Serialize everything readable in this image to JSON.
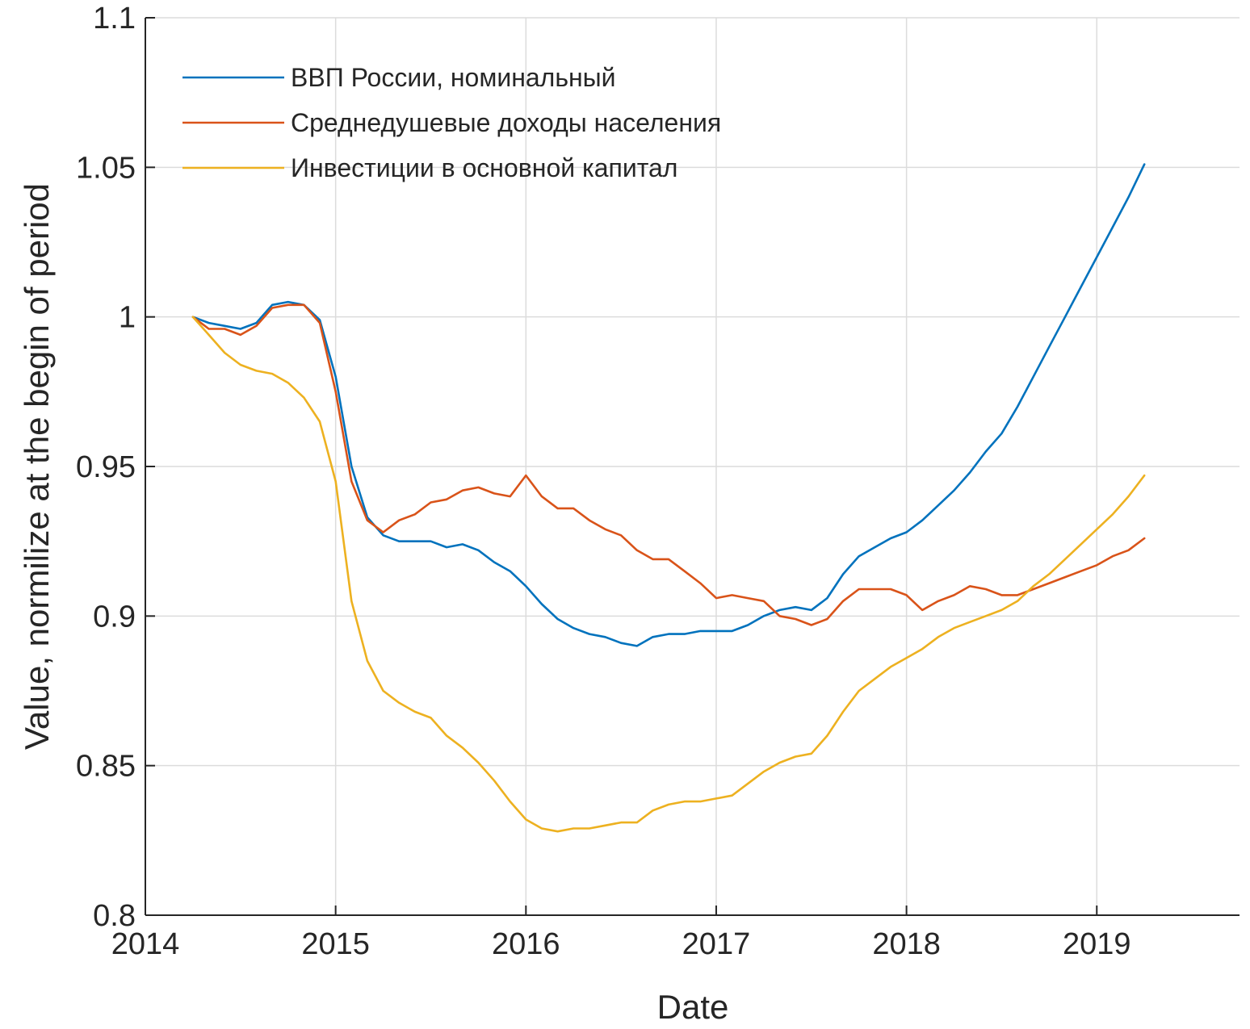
{
  "chart_data": {
    "type": "line",
    "xlabel": "Date",
    "ylabel": "Value, normilize at the begin of period",
    "x_ticks": [
      "2014",
      "2015",
      "2016",
      "2017",
      "2018",
      "2019"
    ],
    "y_ticks": [
      "0.8",
      "0.85",
      "0.9",
      "0.95",
      "1",
      "1.05",
      "1.1"
    ],
    "xlim": [
      "2014-01",
      "2019-10"
    ],
    "ylim": [
      0.8,
      1.1
    ],
    "grid": true,
    "legend_position": "top-left",
    "series": [
      {
        "name": "ВВП России, номинальный",
        "color": "#0072BD",
        "points": [
          [
            "2014-04",
            1.0
          ],
          [
            "2014-05",
            0.998
          ],
          [
            "2014-06",
            0.997
          ],
          [
            "2014-07",
            0.996
          ],
          [
            "2014-08",
            0.998
          ],
          [
            "2014-09",
            1.004
          ],
          [
            "2014-10",
            1.005
          ],
          [
            "2014-11",
            1.004
          ],
          [
            "2014-12",
            0.999
          ],
          [
            "2015-01",
            0.98
          ],
          [
            "2015-02",
            0.95
          ],
          [
            "2015-03",
            0.933
          ],
          [
            "2015-04",
            0.927
          ],
          [
            "2015-05",
            0.925
          ],
          [
            "2015-06",
            0.925
          ],
          [
            "2015-07",
            0.925
          ],
          [
            "2015-08",
            0.923
          ],
          [
            "2015-09",
            0.924
          ],
          [
            "2015-10",
            0.922
          ],
          [
            "2015-11",
            0.918
          ],
          [
            "2015-12",
            0.915
          ],
          [
            "2016-01",
            0.91
          ],
          [
            "2016-02",
            0.904
          ],
          [
            "2016-03",
            0.899
          ],
          [
            "2016-04",
            0.896
          ],
          [
            "2016-05",
            0.894
          ],
          [
            "2016-06",
            0.893
          ],
          [
            "2016-07",
            0.891
          ],
          [
            "2016-08",
            0.89
          ],
          [
            "2016-09",
            0.893
          ],
          [
            "2016-10",
            0.894
          ],
          [
            "2016-11",
            0.894
          ],
          [
            "2016-12",
            0.895
          ],
          [
            "2017-01",
            0.895
          ],
          [
            "2017-02",
            0.895
          ],
          [
            "2017-03",
            0.897
          ],
          [
            "2017-04",
            0.9
          ],
          [
            "2017-05",
            0.902
          ],
          [
            "2017-06",
            0.903
          ],
          [
            "2017-07",
            0.902
          ],
          [
            "2017-08",
            0.906
          ],
          [
            "2017-09",
            0.914
          ],
          [
            "2017-10",
            0.92
          ],
          [
            "2017-11",
            0.923
          ],
          [
            "2017-12",
            0.926
          ],
          [
            "2018-01",
            0.928
          ],
          [
            "2018-02",
            0.932
          ],
          [
            "2018-03",
            0.937
          ],
          [
            "2018-04",
            0.942
          ],
          [
            "2018-05",
            0.948
          ],
          [
            "2018-06",
            0.955
          ],
          [
            "2018-07",
            0.961
          ],
          [
            "2018-08",
            0.97
          ],
          [
            "2018-09",
            0.98
          ],
          [
            "2018-10",
            0.99
          ],
          [
            "2018-11",
            1.0
          ],
          [
            "2018-12",
            1.01
          ],
          [
            "2019-01",
            1.02
          ],
          [
            "2019-02",
            1.03
          ],
          [
            "2019-03",
            1.04
          ],
          [
            "2019-04",
            1.051
          ]
        ]
      },
      {
        "name": "Среднедушевые доходы населения",
        "color": "#D95319",
        "points": [
          [
            "2014-04",
            1.0
          ],
          [
            "2014-05",
            0.996
          ],
          [
            "2014-06",
            0.996
          ],
          [
            "2014-07",
            0.994
          ],
          [
            "2014-08",
            0.997
          ],
          [
            "2014-09",
            1.003
          ],
          [
            "2014-10",
            1.004
          ],
          [
            "2014-11",
            1.004
          ],
          [
            "2014-12",
            0.998
          ],
          [
            "2015-01",
            0.975
          ],
          [
            "2015-02",
            0.945
          ],
          [
            "2015-03",
            0.932
          ],
          [
            "2015-04",
            0.928
          ],
          [
            "2015-05",
            0.932
          ],
          [
            "2015-06",
            0.934
          ],
          [
            "2015-07",
            0.938
          ],
          [
            "2015-08",
            0.939
          ],
          [
            "2015-09",
            0.942
          ],
          [
            "2015-10",
            0.943
          ],
          [
            "2015-11",
            0.941
          ],
          [
            "2015-12",
            0.94
          ],
          [
            "2016-01",
            0.947
          ],
          [
            "2016-02",
            0.94
          ],
          [
            "2016-03",
            0.936
          ],
          [
            "2016-04",
            0.936
          ],
          [
            "2016-05",
            0.932
          ],
          [
            "2016-06",
            0.929
          ],
          [
            "2016-07",
            0.927
          ],
          [
            "2016-08",
            0.922
          ],
          [
            "2016-09",
            0.919
          ],
          [
            "2016-10",
            0.919
          ],
          [
            "2016-11",
            0.915
          ],
          [
            "2016-12",
            0.911
          ],
          [
            "2017-01",
            0.906
          ],
          [
            "2017-02",
            0.907
          ],
          [
            "2017-03",
            0.906
          ],
          [
            "2017-04",
            0.905
          ],
          [
            "2017-05",
            0.9
          ],
          [
            "2017-06",
            0.899
          ],
          [
            "2017-07",
            0.897
          ],
          [
            "2017-08",
            0.899
          ],
          [
            "2017-09",
            0.905
          ],
          [
            "2017-10",
            0.909
          ],
          [
            "2017-11",
            0.909
          ],
          [
            "2017-12",
            0.909
          ],
          [
            "2018-01",
            0.907
          ],
          [
            "2018-02",
            0.902
          ],
          [
            "2018-03",
            0.905
          ],
          [
            "2018-04",
            0.907
          ],
          [
            "2018-05",
            0.91
          ],
          [
            "2018-06",
            0.909
          ],
          [
            "2018-07",
            0.907
          ],
          [
            "2018-08",
            0.907
          ],
          [
            "2018-09",
            0.909
          ],
          [
            "2018-10",
            0.911
          ],
          [
            "2018-11",
            0.913
          ],
          [
            "2018-12",
            0.915
          ],
          [
            "2019-01",
            0.917
          ],
          [
            "2019-02",
            0.92
          ],
          [
            "2019-03",
            0.922
          ],
          [
            "2019-04",
            0.926
          ]
        ]
      },
      {
        "name": "Инвестиции в основной капитал",
        "color": "#EDB120",
        "points": [
          [
            "2014-04",
            1.0
          ],
          [
            "2014-05",
            0.994
          ],
          [
            "2014-06",
            0.988
          ],
          [
            "2014-07",
            0.984
          ],
          [
            "2014-08",
            0.982
          ],
          [
            "2014-09",
            0.981
          ],
          [
            "2014-10",
            0.978
          ],
          [
            "2014-11",
            0.973
          ],
          [
            "2014-12",
            0.965
          ],
          [
            "2015-01",
            0.945
          ],
          [
            "2015-02",
            0.905
          ],
          [
            "2015-03",
            0.885
          ],
          [
            "2015-04",
            0.875
          ],
          [
            "2015-05",
            0.871
          ],
          [
            "2015-06",
            0.868
          ],
          [
            "2015-07",
            0.866
          ],
          [
            "2015-08",
            0.86
          ],
          [
            "2015-09",
            0.856
          ],
          [
            "2015-10",
            0.851
          ],
          [
            "2015-11",
            0.845
          ],
          [
            "2015-12",
            0.838
          ],
          [
            "2016-01",
            0.832
          ],
          [
            "2016-02",
            0.829
          ],
          [
            "2016-03",
            0.828
          ],
          [
            "2016-04",
            0.829
          ],
          [
            "2016-05",
            0.829
          ],
          [
            "2016-06",
            0.83
          ],
          [
            "2016-07",
            0.831
          ],
          [
            "2016-08",
            0.831
          ],
          [
            "2016-09",
            0.835
          ],
          [
            "2016-10",
            0.837
          ],
          [
            "2016-11",
            0.838
          ],
          [
            "2016-12",
            0.838
          ],
          [
            "2017-01",
            0.839
          ],
          [
            "2017-02",
            0.84
          ],
          [
            "2017-03",
            0.844
          ],
          [
            "2017-04",
            0.848
          ],
          [
            "2017-05",
            0.851
          ],
          [
            "2017-06",
            0.853
          ],
          [
            "2017-07",
            0.854
          ],
          [
            "2017-08",
            0.86
          ],
          [
            "2017-09",
            0.868
          ],
          [
            "2017-10",
            0.875
          ],
          [
            "2017-11",
            0.879
          ],
          [
            "2017-12",
            0.883
          ],
          [
            "2018-01",
            0.886
          ],
          [
            "2018-02",
            0.889
          ],
          [
            "2018-03",
            0.893
          ],
          [
            "2018-04",
            0.896
          ],
          [
            "2018-05",
            0.898
          ],
          [
            "2018-06",
            0.9
          ],
          [
            "2018-07",
            0.902
          ],
          [
            "2018-08",
            0.905
          ],
          [
            "2018-09",
            0.91
          ],
          [
            "2018-10",
            0.914
          ],
          [
            "2018-11",
            0.919
          ],
          [
            "2018-12",
            0.924
          ],
          [
            "2019-01",
            0.929
          ],
          [
            "2019-02",
            0.934
          ],
          [
            "2019-03",
            0.94
          ],
          [
            "2019-04",
            0.947
          ]
        ]
      }
    ]
  }
}
